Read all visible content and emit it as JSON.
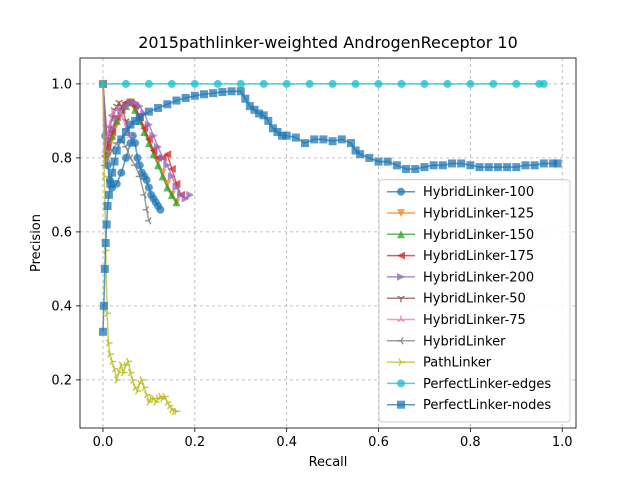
{
  "chart_data": {
    "type": "line",
    "title": "2015pathlinker-weighted AndrogenReceptor 10",
    "xlabel": "Recall",
    "ylabel": "Precision",
    "xlim": [
      -0.05,
      1.03
    ],
    "ylim": [
      0.07,
      1.07
    ],
    "x_ticks": [
      0.0,
      0.2,
      0.4,
      0.6,
      0.8,
      1.0
    ],
    "x_tick_labels": [
      "0.0",
      "0.2",
      "0.4",
      "0.6",
      "0.8",
      "1.0"
    ],
    "y_ticks": [
      0.2,
      0.4,
      0.6,
      0.8,
      1.0
    ],
    "y_tick_labels": [
      "0.2",
      "0.4",
      "0.6",
      "0.8",
      "1.0"
    ],
    "grid": true,
    "legend_position": "lower-right",
    "series": [
      {
        "name": "HybridLinker-100",
        "color": "#1f77b4",
        "marker": "circle",
        "points": [
          [
            0.0,
            1.0
          ],
          [
            0.005,
            0.86
          ],
          [
            0.01,
            0.78
          ],
          [
            0.015,
            0.74
          ],
          [
            0.02,
            0.72
          ],
          [
            0.03,
            0.73
          ],
          [
            0.04,
            0.76
          ],
          [
            0.05,
            0.8
          ],
          [
            0.06,
            0.84
          ],
          [
            0.065,
            0.86
          ],
          [
            0.07,
            0.84
          ],
          [
            0.075,
            0.8
          ],
          [
            0.08,
            0.78
          ],
          [
            0.085,
            0.76
          ],
          [
            0.09,
            0.75
          ],
          [
            0.095,
            0.74
          ],
          [
            0.1,
            0.72
          ],
          [
            0.105,
            0.7
          ],
          [
            0.11,
            0.69
          ],
          [
            0.115,
            0.68
          ],
          [
            0.12,
            0.67
          ],
          [
            0.125,
            0.66
          ]
        ]
      },
      {
        "name": "HybridLinker-125",
        "color": "#ff7f0e",
        "marker": "triangle-down",
        "points": [
          [
            0.0,
            1.0
          ],
          [
            0.01,
            0.8
          ],
          [
            0.02,
            0.85
          ],
          [
            0.03,
            0.89
          ],
          [
            0.04,
            0.92
          ],
          [
            0.05,
            0.94
          ],
          [
            0.06,
            0.95
          ],
          [
            0.07,
            0.93
          ],
          [
            0.08,
            0.91
          ],
          [
            0.09,
            0.88
          ],
          [
            0.1,
            0.85
          ],
          [
            0.11,
            0.82
          ],
          [
            0.12,
            0.79
          ],
          [
            0.13,
            0.76
          ],
          [
            0.14,
            0.73
          ],
          [
            0.15,
            0.7
          ],
          [
            0.16,
            0.68
          ]
        ]
      },
      {
        "name": "HybridLinker-150",
        "color": "#2ca02c",
        "marker": "triangle-up",
        "points": [
          [
            0.0,
            1.0
          ],
          [
            0.01,
            0.82
          ],
          [
            0.02,
            0.86
          ],
          [
            0.03,
            0.9
          ],
          [
            0.04,
            0.93
          ],
          [
            0.05,
            0.94
          ],
          [
            0.06,
            0.95
          ],
          [
            0.07,
            0.93
          ],
          [
            0.08,
            0.9
          ],
          [
            0.09,
            0.87
          ],
          [
            0.1,
            0.84
          ],
          [
            0.11,
            0.81
          ],
          [
            0.12,
            0.78
          ],
          [
            0.13,
            0.75
          ],
          [
            0.14,
            0.72
          ],
          [
            0.15,
            0.7
          ],
          [
            0.16,
            0.68
          ]
        ]
      },
      {
        "name": "HybridLinker-175",
        "color": "#d62728",
        "marker": "triangle-left",
        "points": [
          [
            0.0,
            1.0
          ],
          [
            0.01,
            0.83
          ],
          [
            0.02,
            0.87
          ],
          [
            0.03,
            0.91
          ],
          [
            0.04,
            0.93
          ],
          [
            0.05,
            0.95
          ],
          [
            0.06,
            0.95
          ],
          [
            0.07,
            0.94
          ],
          [
            0.08,
            0.91
          ],
          [
            0.09,
            0.88
          ],
          [
            0.1,
            0.85
          ],
          [
            0.11,
            0.82
          ],
          [
            0.12,
            0.8
          ],
          [
            0.13,
            0.8
          ],
          [
            0.14,
            0.81
          ],
          [
            0.15,
            0.77
          ],
          [
            0.16,
            0.73
          ],
          [
            0.17,
            0.7
          ]
        ]
      },
      {
        "name": "HybridLinker-200",
        "color": "#9467bd",
        "marker": "triangle-right",
        "points": [
          [
            0.0,
            1.0
          ],
          [
            0.01,
            0.84
          ],
          [
            0.02,
            0.88
          ],
          [
            0.03,
            0.91
          ],
          [
            0.04,
            0.93
          ],
          [
            0.05,
            0.94
          ],
          [
            0.06,
            0.95
          ],
          [
            0.07,
            0.95
          ],
          [
            0.08,
            0.94
          ],
          [
            0.09,
            0.92
          ],
          [
            0.1,
            0.89
          ],
          [
            0.11,
            0.86
          ],
          [
            0.12,
            0.83
          ],
          [
            0.13,
            0.8
          ],
          [
            0.14,
            0.78
          ],
          [
            0.15,
            0.75
          ],
          [
            0.16,
            0.72
          ],
          [
            0.17,
            0.7
          ],
          [
            0.18,
            0.69
          ],
          [
            0.19,
            0.7
          ]
        ]
      },
      {
        "name": "HybridLinker-50",
        "color": "#8c564b",
        "marker": "tri-down",
        "points": [
          [
            0.0,
            1.0
          ],
          [
            0.005,
            0.8
          ],
          [
            0.01,
            0.84
          ],
          [
            0.015,
            0.88
          ],
          [
            0.02,
            0.91
          ],
          [
            0.025,
            0.93
          ],
          [
            0.03,
            0.94
          ],
          [
            0.035,
            0.95
          ],
          [
            0.04,
            0.94
          ],
          [
            0.05,
            0.9
          ],
          [
            0.055,
            0.88
          ]
        ]
      },
      {
        "name": "HybridLinker-75",
        "color": "#e377c2",
        "marker": "tri-up",
        "points": [
          [
            0.0,
            1.0
          ],
          [
            0.005,
            0.82
          ],
          [
            0.01,
            0.86
          ],
          [
            0.015,
            0.89
          ],
          [
            0.02,
            0.92
          ],
          [
            0.03,
            0.93
          ],
          [
            0.04,
            0.92
          ],
          [
            0.05,
            0.88
          ],
          [
            0.06,
            0.86
          ]
        ]
      },
      {
        "name": "HybridLinker",
        "color": "#7f7f7f",
        "marker": "tri-left",
        "points": [
          [
            0.0,
            1.0
          ],
          [
            0.005,
            0.78
          ],
          [
            0.01,
            0.8
          ],
          [
            0.02,
            0.82
          ],
          [
            0.03,
            0.84
          ],
          [
            0.04,
            0.85
          ],
          [
            0.05,
            0.83
          ],
          [
            0.06,
            0.8
          ],
          [
            0.07,
            0.78
          ],
          [
            0.08,
            0.75
          ],
          [
            0.09,
            0.7
          ],
          [
            0.095,
            0.66
          ],
          [
            0.1,
            0.63
          ]
        ]
      },
      {
        "name": "PathLinker",
        "color": "#bcbd22",
        "marker": "tri-right",
        "points": [
          [
            0.0,
            1.0
          ],
          [
            0.003,
            0.75
          ],
          [
            0.006,
            0.55
          ],
          [
            0.009,
            0.38
          ],
          [
            0.012,
            0.3
          ],
          [
            0.015,
            0.27
          ],
          [
            0.02,
            0.25
          ],
          [
            0.025,
            0.23
          ],
          [
            0.03,
            0.2
          ],
          [
            0.035,
            0.22
          ],
          [
            0.04,
            0.24
          ],
          [
            0.045,
            0.22
          ],
          [
            0.05,
            0.24
          ],
          [
            0.055,
            0.25
          ],
          [
            0.06,
            0.22
          ],
          [
            0.065,
            0.2
          ],
          [
            0.07,
            0.18
          ],
          [
            0.075,
            0.17
          ],
          [
            0.08,
            0.19
          ],
          [
            0.085,
            0.2
          ],
          [
            0.09,
            0.18
          ],
          [
            0.095,
            0.16
          ],
          [
            0.1,
            0.14
          ],
          [
            0.105,
            0.15
          ],
          [
            0.11,
            0.15
          ],
          [
            0.115,
            0.14
          ],
          [
            0.12,
            0.15
          ],
          [
            0.125,
            0.155
          ],
          [
            0.13,
            0.15
          ],
          [
            0.135,
            0.155
          ],
          [
            0.14,
            0.14
          ],
          [
            0.145,
            0.13
          ],
          [
            0.15,
            0.12
          ],
          [
            0.155,
            0.115
          ],
          [
            0.16,
            0.115
          ]
        ]
      },
      {
        "name": "PerfectLinker-edges",
        "color": "#17becf",
        "marker": "circle",
        "points": [
          [
            0.0,
            1.0
          ],
          [
            0.05,
            1.0
          ],
          [
            0.1,
            1.0
          ],
          [
            0.15,
            1.0
          ],
          [
            0.2,
            1.0
          ],
          [
            0.25,
            1.0
          ],
          [
            0.3,
            1.0
          ],
          [
            0.35,
            1.0
          ],
          [
            0.4,
            1.0
          ],
          [
            0.45,
            1.0
          ],
          [
            0.5,
            1.0
          ],
          [
            0.55,
            1.0
          ],
          [
            0.6,
            1.0
          ],
          [
            0.65,
            1.0
          ],
          [
            0.7,
            1.0
          ],
          [
            0.75,
            1.0
          ],
          [
            0.8,
            1.0
          ],
          [
            0.85,
            1.0
          ],
          [
            0.9,
            1.0
          ],
          [
            0.95,
            1.0
          ],
          [
            0.96,
            1.0
          ]
        ]
      },
      {
        "name": "PerfectLinker-nodes",
        "color": "#1f77b4",
        "marker": "square",
        "points": [
          [
            0.0,
            0.33
          ],
          [
            0.002,
            0.4
          ],
          [
            0.004,
            0.5
          ],
          [
            0.006,
            0.57
          ],
          [
            0.008,
            0.62
          ],
          [
            0.01,
            0.67
          ],
          [
            0.013,
            0.7
          ],
          [
            0.016,
            0.73
          ],
          [
            0.02,
            0.76
          ],
          [
            0.025,
            0.79
          ],
          [
            0.03,
            0.82
          ],
          [
            0.04,
            0.85
          ],
          [
            0.05,
            0.87
          ],
          [
            0.06,
            0.89
          ],
          [
            0.07,
            0.9
          ],
          [
            0.08,
            0.91
          ],
          [
            0.1,
            0.925
          ],
          [
            0.12,
            0.935
          ],
          [
            0.14,
            0.945
          ],
          [
            0.16,
            0.955
          ],
          [
            0.18,
            0.962
          ],
          [
            0.2,
            0.968
          ],
          [
            0.22,
            0.972
          ],
          [
            0.24,
            0.975
          ],
          [
            0.26,
            0.978
          ],
          [
            0.28,
            0.98
          ],
          [
            0.3,
            0.98
          ],
          [
            0.31,
            0.96
          ],
          [
            0.32,
            0.94
          ],
          [
            0.33,
            0.93
          ],
          [
            0.34,
            0.92
          ],
          [
            0.35,
            0.915
          ],
          [
            0.36,
            0.9
          ],
          [
            0.37,
            0.88
          ],
          [
            0.38,
            0.87
          ],
          [
            0.39,
            0.86
          ],
          [
            0.4,
            0.86
          ],
          [
            0.42,
            0.855
          ],
          [
            0.44,
            0.84
          ],
          [
            0.46,
            0.85
          ],
          [
            0.48,
            0.85
          ],
          [
            0.5,
            0.845
          ],
          [
            0.52,
            0.85
          ],
          [
            0.54,
            0.84
          ],
          [
            0.55,
            0.82
          ],
          [
            0.56,
            0.81
          ],
          [
            0.58,
            0.8
          ],
          [
            0.6,
            0.79
          ],
          [
            0.62,
            0.79
          ],
          [
            0.64,
            0.78
          ],
          [
            0.66,
            0.77
          ],
          [
            0.68,
            0.77
          ],
          [
            0.7,
            0.775
          ],
          [
            0.72,
            0.78
          ],
          [
            0.74,
            0.78
          ],
          [
            0.76,
            0.785
          ],
          [
            0.78,
            0.785
          ],
          [
            0.8,
            0.78
          ],
          [
            0.82,
            0.775
          ],
          [
            0.84,
            0.775
          ],
          [
            0.86,
            0.775
          ],
          [
            0.88,
            0.775
          ],
          [
            0.9,
            0.775
          ],
          [
            0.92,
            0.78
          ],
          [
            0.94,
            0.78
          ],
          [
            0.96,
            0.785
          ],
          [
            0.98,
            0.785
          ],
          [
            0.99,
            0.785
          ]
        ]
      }
    ]
  }
}
